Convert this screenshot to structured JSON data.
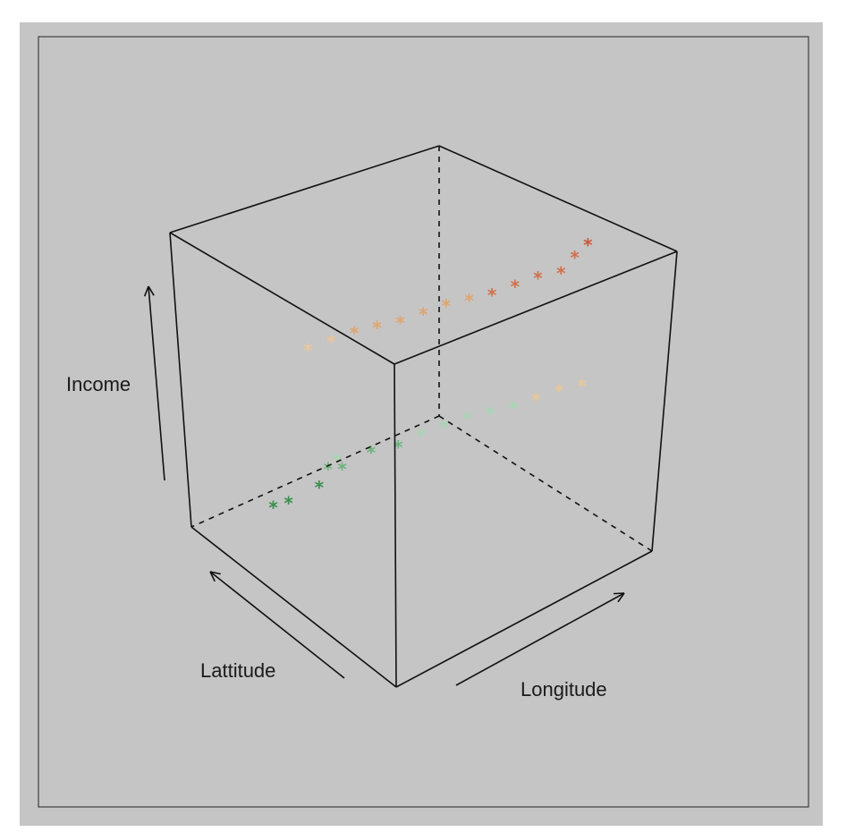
{
  "chart_data": {
    "type": "scatter",
    "projection": "3d",
    "marker": "asterisk",
    "axes": {
      "x": {
        "label": "Longitude"
      },
      "y": {
        "label": "Lattitude"
      },
      "z": {
        "label": "Income"
      }
    },
    "xlim": [
      0,
      1
    ],
    "ylim": [
      0,
      1
    ],
    "zlim": [
      0,
      1
    ],
    "color_scale": [
      "#3a8f4f",
      "#6db47c",
      "#a8d5b4",
      "#e9c79a",
      "#e0a56e",
      "#d1714c",
      "#c85a3c"
    ],
    "points": [
      {
        "x": 0.2,
        "y": 0.85,
        "z": 0.05
      },
      {
        "x": 0.22,
        "y": 0.8,
        "z": 0.08
      },
      {
        "x": 0.3,
        "y": 0.75,
        "z": 0.12
      },
      {
        "x": 0.35,
        "y": 0.7,
        "z": 0.18
      },
      {
        "x": 0.28,
        "y": 0.68,
        "z": 0.22
      },
      {
        "x": 0.4,
        "y": 0.62,
        "z": 0.25
      },
      {
        "x": 0.45,
        "y": 0.55,
        "z": 0.28
      },
      {
        "x": 0.25,
        "y": 0.6,
        "z": 0.3
      },
      {
        "x": 0.5,
        "y": 0.5,
        "z": 0.32
      },
      {
        "x": 0.55,
        "y": 0.45,
        "z": 0.35
      },
      {
        "x": 0.6,
        "y": 0.4,
        "z": 0.38
      },
      {
        "x": 0.65,
        "y": 0.35,
        "z": 0.4
      },
      {
        "x": 0.7,
        "y": 0.3,
        "z": 0.42
      },
      {
        "x": 0.75,
        "y": 0.25,
        "z": 0.45
      },
      {
        "x": 0.8,
        "y": 0.2,
        "z": 0.48
      },
      {
        "x": 0.85,
        "y": 0.15,
        "z": 0.5
      },
      {
        "x": 0.3,
        "y": 0.8,
        "z": 0.52
      },
      {
        "x": 0.35,
        "y": 0.75,
        "z": 0.55
      },
      {
        "x": 0.4,
        "y": 0.7,
        "z": 0.58
      },
      {
        "x": 0.45,
        "y": 0.65,
        "z": 0.6
      },
      {
        "x": 0.5,
        "y": 0.6,
        "z": 0.62
      },
      {
        "x": 0.55,
        "y": 0.55,
        "z": 0.65
      },
      {
        "x": 0.6,
        "y": 0.5,
        "z": 0.68
      },
      {
        "x": 0.65,
        "y": 0.45,
        "z": 0.7
      },
      {
        "x": 0.7,
        "y": 0.4,
        "z": 0.72
      },
      {
        "x": 0.75,
        "y": 0.35,
        "z": 0.75
      },
      {
        "x": 0.8,
        "y": 0.3,
        "z": 0.78
      },
      {
        "x": 0.85,
        "y": 0.25,
        "z": 0.8
      },
      {
        "x": 0.88,
        "y": 0.22,
        "z": 0.85
      },
      {
        "x": 0.9,
        "y": 0.18,
        "z": 0.9
      }
    ]
  }
}
